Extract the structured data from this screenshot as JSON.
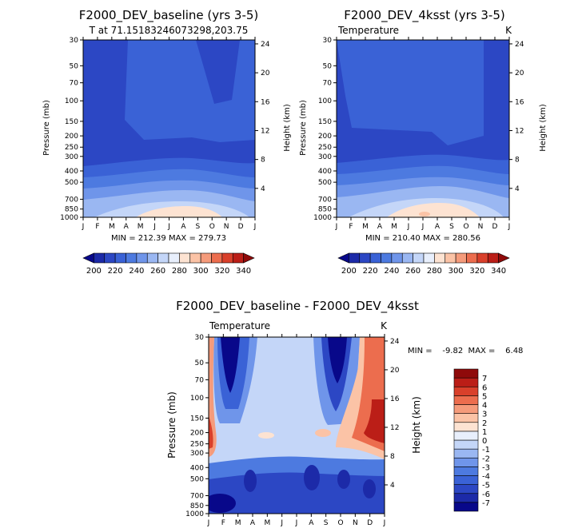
{
  "chart_data": [
    {
      "type": "heatmap",
      "title": "F2000_DEV_baseline (yrs 3-5)",
      "subtitle_left": "T at 71.15183246073298,203.75",
      "subtitle_right": "",
      "xlabel": "",
      "ylabel_left": "Pressure (mb)",
      "ylabel_right": "Height (km)",
      "x_ticks": [
        "J",
        "F",
        "M",
        "A",
        "M",
        "J",
        "J",
        "A",
        "S",
        "O",
        "N",
        "D",
        "J"
      ],
      "y_ticks": [
        30,
        50,
        70,
        100,
        150,
        200,
        250,
        300,
        400,
        500,
        700,
        850,
        1000
      ],
      "y_tick_labels": [
        "30",
        "50",
        "70",
        "100",
        "150",
        "200",
        "250",
        "300",
        "400",
        "500",
        "700",
        "850",
        "1000"
      ],
      "height_ticks": [
        4,
        8,
        12,
        16,
        20,
        24
      ],
      "height_tick_labels": [
        "4",
        "8",
        "12",
        "16",
        "20",
        "24"
      ],
      "stats": "MIN = 212.39  MAX = 279.73",
      "min": 212.39,
      "max": 279.73
    },
    {
      "type": "heatmap",
      "title": "F2000_DEV_4ksst (yrs 3-5)",
      "subtitle_left": "Temperature",
      "subtitle_right": "K",
      "xlabel": "",
      "ylabel_left": "Pressure (mb)",
      "ylabel_right": "Height (km)",
      "x_ticks": [
        "J",
        "F",
        "M",
        "A",
        "M",
        "J",
        "J",
        "A",
        "S",
        "O",
        "N",
        "D",
        "J"
      ],
      "y_ticks": [
        30,
        50,
        70,
        100,
        150,
        200,
        250,
        300,
        400,
        500,
        700,
        850,
        1000
      ],
      "y_tick_labels": [
        "30",
        "50",
        "70",
        "100",
        "150",
        "200",
        "250",
        "300",
        "400",
        "500",
        "700",
        "850",
        "1000"
      ],
      "height_ticks": [
        4,
        8,
        12,
        16,
        20,
        24
      ],
      "height_tick_labels": [
        "4",
        "8",
        "12",
        "16",
        "20",
        "24"
      ],
      "stats": "MIN = 210.40  MAX = 280.56",
      "min": 210.4,
      "max": 280.56
    },
    {
      "type": "heatmap",
      "title": "F2000_DEV_baseline - F2000_DEV_4ksst",
      "subtitle_left": "Temperature",
      "subtitle_right": "K",
      "xlabel": "",
      "ylabel_left": "Pressure (mb)",
      "ylabel_right": "Height (km)",
      "x_ticks": [
        "J",
        "F",
        "M",
        "A",
        "M",
        "J",
        "J",
        "A",
        "S",
        "O",
        "N",
        "D",
        "J"
      ],
      "y_ticks": [
        30,
        50,
        70,
        100,
        150,
        200,
        250,
        300,
        400,
        500,
        700,
        850,
        1000
      ],
      "y_tick_labels": [
        "30",
        "50",
        "70",
        "100",
        "150",
        "200",
        "250",
        "300",
        "400",
        "500",
        "700",
        "850",
        "1000"
      ],
      "height_ticks": [
        4,
        8,
        12,
        16,
        20,
        24
      ],
      "height_tick_labels": [
        "4",
        "8",
        "12",
        "16",
        "20",
        "24"
      ],
      "stats": "MIN =    -9.82  MAX =    6.48",
      "min": -9.82,
      "max": 6.48
    }
  ],
  "colorbar_abs": {
    "orientation": "horizontal",
    "levels": [
      200,
      210,
      220,
      230,
      240,
      250,
      260,
      270,
      280,
      290,
      300,
      310,
      320,
      330,
      340
    ],
    "labels": [
      "200",
      "220",
      "240",
      "260",
      "280",
      "300",
      "320",
      "340"
    ],
    "colors": [
      "#08088a",
      "#1c2aa8",
      "#2c47c4",
      "#3a62d6",
      "#4d7ae0",
      "#6f95ea",
      "#9ab7f2",
      "#c4d6f8",
      "#e8effc",
      "#fde3d2",
      "#fbc3a6",
      "#f59b7b",
      "#ec6d4e",
      "#d9402b",
      "#bb1e17",
      "#8f0a0a"
    ]
  },
  "colorbar_diff": {
    "orientation": "vertical",
    "levels": [
      -7,
      -6,
      -5,
      -4,
      -3,
      -2,
      -1,
      0,
      1,
      2,
      3,
      4,
      5,
      6,
      7
    ],
    "labels": [
      "-7",
      "-6",
      "-5",
      "-4",
      "-3",
      "-2",
      "-1",
      "0",
      "1",
      "2",
      "3",
      "4",
      "5",
      "6",
      "7"
    ],
    "colors": [
      "#08088a",
      "#1c2aa8",
      "#2c47c4",
      "#3a62d6",
      "#4d7ae0",
      "#6f95ea",
      "#9ab7f2",
      "#c4d6f8",
      "#e8effc",
      "#fde3d2",
      "#fbc3a6",
      "#f59b7b",
      "#ec6d4e",
      "#d9402b",
      "#bb1e17",
      "#8f0a0a"
    ]
  }
}
